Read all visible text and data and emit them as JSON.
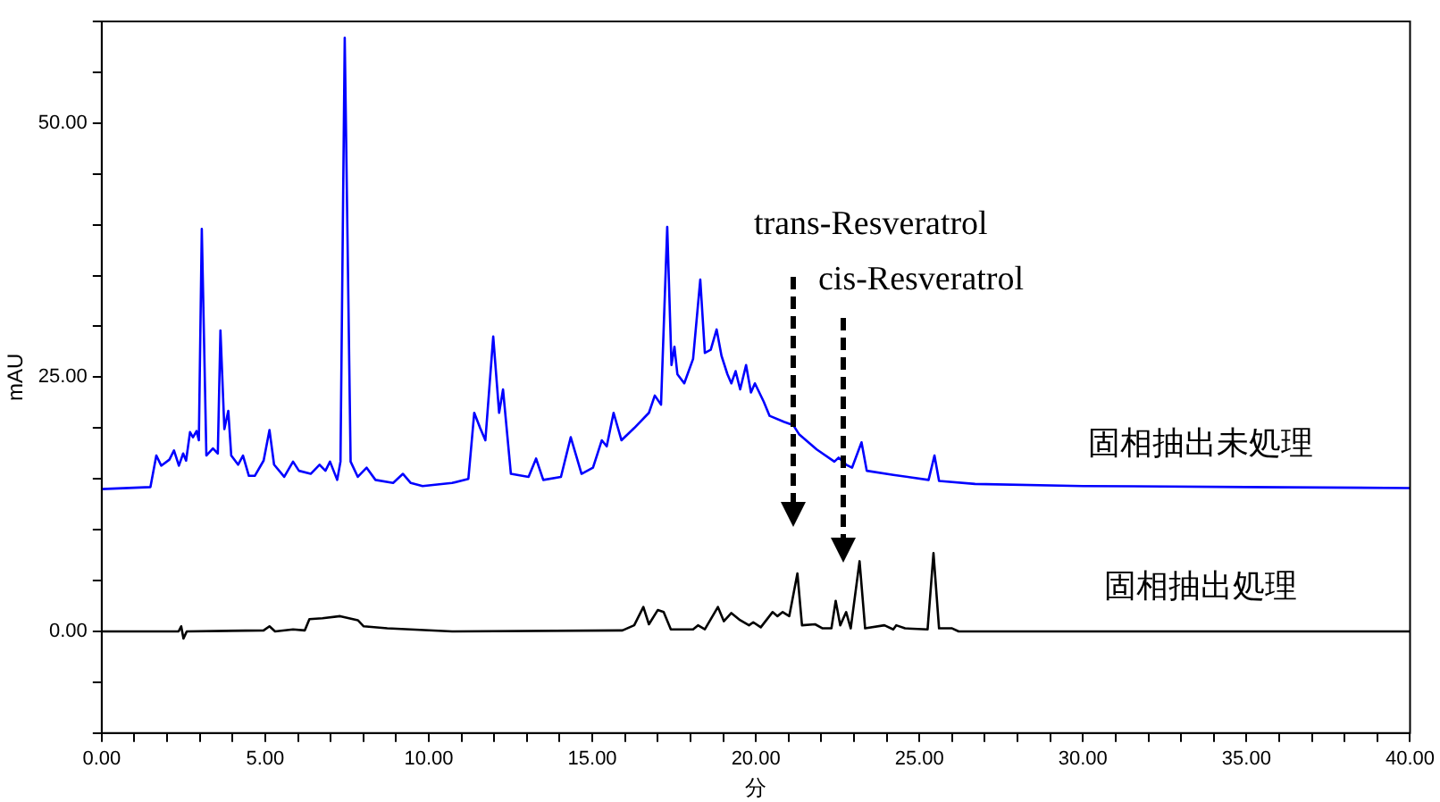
{
  "chart_data": {
    "type": "line",
    "xlabel": "分",
    "ylabel": "mAU",
    "xlim": [
      0,
      40
    ],
    "ylim": [
      -10,
      60
    ],
    "xticks": [
      {
        "value": 0,
        "label": "0.00"
      },
      {
        "value": 1,
        "label": null
      },
      {
        "value": 2,
        "label": null
      },
      {
        "value": 3,
        "label": null
      },
      {
        "value": 4,
        "label": null
      },
      {
        "value": 5,
        "label": "5.00"
      },
      {
        "value": 6,
        "label": null
      },
      {
        "value": 7,
        "label": null
      },
      {
        "value": 8,
        "label": null
      },
      {
        "value": 9,
        "label": null
      },
      {
        "value": 10,
        "label": "10.00"
      },
      {
        "value": 11,
        "label": null
      },
      {
        "value": 12,
        "label": null
      },
      {
        "value": 13,
        "label": null
      },
      {
        "value": 14,
        "label": null
      },
      {
        "value": 15,
        "label": "15.00"
      },
      {
        "value": 16,
        "label": null
      },
      {
        "value": 17,
        "label": null
      },
      {
        "value": 18,
        "label": null
      },
      {
        "value": 19,
        "label": null
      },
      {
        "value": 20,
        "label": "20.00"
      },
      {
        "value": 21,
        "label": null
      },
      {
        "value": 22,
        "label": null
      },
      {
        "value": 23,
        "label": null
      },
      {
        "value": 24,
        "label": null
      },
      {
        "value": 25,
        "label": "25.00"
      },
      {
        "value": 26,
        "label": null
      },
      {
        "value": 27,
        "label": null
      },
      {
        "value": 28,
        "label": null
      },
      {
        "value": 29,
        "label": null
      },
      {
        "value": 30,
        "label": "30.00"
      },
      {
        "value": 31,
        "label": null
      },
      {
        "value": 32,
        "label": null
      },
      {
        "value": 33,
        "label": null
      },
      {
        "value": 34,
        "label": null
      },
      {
        "value": 35,
        "label": "35.00"
      },
      {
        "value": 36,
        "label": null
      },
      {
        "value": 37,
        "label": null
      },
      {
        "value": 38,
        "label": null
      },
      {
        "value": 39,
        "label": null
      },
      {
        "value": 40,
        "label": "40.00"
      }
    ],
    "yticks": [
      {
        "value": -10,
        "label": null
      },
      {
        "value": -5,
        "label": null
      },
      {
        "value": 0,
        "label": "0.00"
      },
      {
        "value": 5,
        "label": null
      },
      {
        "value": 10,
        "label": null
      },
      {
        "value": 15,
        "label": null
      },
      {
        "value": 20,
        "label": null
      },
      {
        "value": 25,
        "label": "25.00"
      },
      {
        "value": 30,
        "label": null
      },
      {
        "value": 35,
        "label": null
      },
      {
        "value": 40,
        "label": null
      },
      {
        "value": 45,
        "label": null
      },
      {
        "value": 50,
        "label": "50.00"
      },
      {
        "value": 55,
        "label": null
      },
      {
        "value": 60,
        "label": null
      }
    ],
    "grid": false,
    "legend": false,
    "marker": "none",
    "line_style": "solid",
    "series": [
      {
        "name": "固相抽出未処理",
        "color": "#0000ff",
        "x": [
          0,
          1.49,
          1.67,
          1.82,
          2.07,
          2.21,
          2.36,
          2.49,
          2.58,
          2.7,
          2.79,
          2.9,
          2.97,
          3.06,
          3.2,
          3.4,
          3.55,
          3.63,
          3.75,
          3.87,
          3.96,
          4.17,
          4.32,
          4.5,
          4.68,
          4.95,
          5.13,
          5.27,
          5.58,
          5.85,
          6.03,
          6.39,
          6.66,
          6.84,
          6.98,
          7.2,
          7.3,
          7.43,
          7.61,
          7.83,
          8.1,
          8.37,
          8.91,
          9.21,
          9.45,
          9.81,
          10.71,
          11.21,
          11.39,
          11.57,
          11.73,
          11.97,
          12.15,
          12.27,
          12.51,
          13.05,
          13.28,
          13.5,
          14.04,
          14.34,
          14.67,
          15.02,
          15.29,
          15.44,
          15.65,
          15.89,
          16.28,
          16.73,
          16.91,
          17.1,
          17.29,
          17.42,
          17.51,
          17.6,
          17.81,
          18.08,
          18.3,
          18.44,
          18.62,
          18.8,
          18.95,
          19.13,
          19.25,
          19.38,
          19.52,
          19.7,
          19.85,
          19.97,
          20.24,
          20.42,
          20.87,
          21.14,
          21.32,
          21.86,
          22.4,
          22.53,
          22.76,
          22.94,
          23.23,
          23.39,
          24.2,
          25.28,
          25.46,
          25.6,
          26.7,
          30,
          35,
          40
        ],
        "values": [
          14.0,
          14.2,
          17.3,
          16.3,
          16.9,
          17.8,
          16.3,
          17.5,
          16.8,
          19.6,
          19.1,
          19.7,
          18.8,
          39.6,
          17.3,
          18.0,
          17.5,
          29.6,
          19.9,
          21.7,
          17.3,
          16.4,
          17.3,
          15.3,
          15.3,
          16.8,
          19.8,
          16.4,
          15.2,
          16.7,
          15.8,
          15.5,
          16.4,
          15.8,
          16.7,
          14.9,
          16.7,
          58.4,
          16.7,
          15.2,
          16.1,
          14.9,
          14.6,
          15.5,
          14.6,
          14.3,
          14.6,
          15.0,
          21.5,
          20.0,
          18.8,
          29.0,
          21.5,
          23.8,
          15.5,
          15.2,
          17.0,
          14.9,
          15.2,
          19.1,
          15.5,
          16.1,
          18.8,
          18.2,
          21.5,
          18.8,
          20.0,
          21.5,
          23.2,
          22.3,
          39.8,
          26.2,
          28.0,
          25.3,
          24.4,
          26.8,
          34.6,
          27.4,
          27.7,
          29.7,
          27.1,
          25.3,
          24.4,
          25.6,
          23.8,
          26.2,
          23.5,
          24.4,
          22.6,
          21.2,
          20.6,
          20.3,
          19.4,
          17.9,
          16.7,
          17.1,
          16.4,
          16.1,
          18.6,
          15.8,
          15.4,
          14.9,
          17.3,
          14.8,
          14.5,
          14.3,
          14.2,
          14.1
        ]
      },
      {
        "name": "固相抽出処理",
        "color": "#000000",
        "x": [
          0,
          2.35,
          2.43,
          2.5,
          2.6,
          4.95,
          5.13,
          5.3,
          5.85,
          6.21,
          6.35,
          6.75,
          7.29,
          7.83,
          8.01,
          8.73,
          10.71,
          15.92,
          16.28,
          16.56,
          16.73,
          17.0,
          17.18,
          17.4,
          18.08,
          18.23,
          18.44,
          18.84,
          19.02,
          19.25,
          19.52,
          19.79,
          19.92,
          20.15,
          20.51,
          20.66,
          20.82,
          21.02,
          21.27,
          21.41,
          21.81,
          22.04,
          22.31,
          22.44,
          22.58,
          22.76,
          22.9,
          23.17,
          23.34,
          23.93,
          24.2,
          24.29,
          24.56,
          25.25,
          25.43,
          25.6,
          26.0,
          26.2,
          40
        ],
        "values": [
          0,
          0,
          0.5,
          -0.7,
          0,
          0.1,
          0.5,
          0,
          0.2,
          0.1,
          1.2,
          1.3,
          1.5,
          1.1,
          0.5,
          0.3,
          0,
          0.1,
          0.6,
          2.4,
          0.7,
          2.1,
          1.9,
          0.2,
          0.2,
          0.6,
          0.2,
          2.4,
          1.0,
          1.8,
          1.1,
          0.6,
          0.9,
          0.4,
          1.9,
          1.5,
          1.9,
          1.5,
          5.7,
          0.6,
          0.7,
          0.3,
          0.3,
          3.0,
          0.6,
          1.9,
          0.3,
          6.9,
          0.3,
          0.6,
          0.2,
          0.6,
          0.3,
          0.2,
          7.7,
          0.3,
          0.3,
          0,
          0
        ]
      }
    ],
    "annotations": [
      "trans-Resveratrol",
      "cis-Resveratrol"
    ]
  }
}
